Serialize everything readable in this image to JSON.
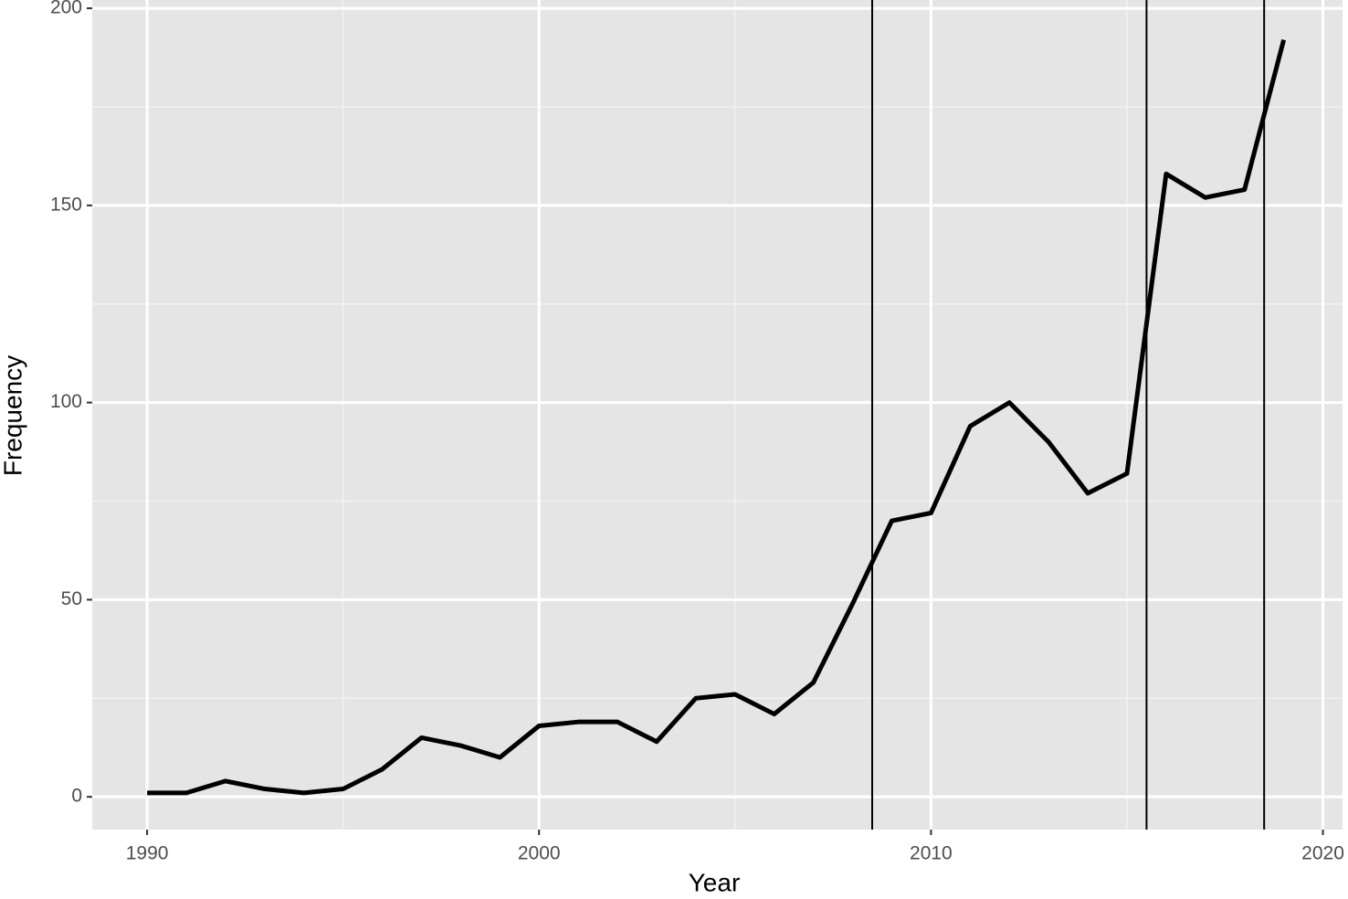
{
  "chart_data": {
    "type": "line",
    "x_label": "Year",
    "y_label": "Frequency",
    "x": [
      1990,
      1991,
      1992,
      1993,
      1994,
      1995,
      1996,
      1997,
      1998,
      1999,
      2000,
      2001,
      2002,
      2003,
      2004,
      2005,
      2006,
      2007,
      2008,
      2009,
      2010,
      2011,
      2012,
      2013,
      2014,
      2015,
      2016,
      2017,
      2018,
      2019
    ],
    "values": [
      1,
      1,
      4,
      2,
      1,
      2,
      7,
      15,
      13,
      10,
      18,
      19,
      19,
      14,
      25,
      26,
      21,
      29,
      49,
      70,
      72,
      94,
      100,
      90,
      77,
      82,
      158,
      152,
      154,
      192
    ],
    "color": "#000000",
    "vlines": [
      2008.5,
      2015.5,
      2018.5
    ],
    "xlim": [
      1988.6,
      2020.5
    ],
    "xticks": [
      1990,
      2000,
      2010,
      2020
    ],
    "x_minor_ticks": [
      1995,
      2005,
      2015
    ],
    "ylim": [
      -8.3,
      202.1
    ],
    "yticks": [
      0,
      50,
      100,
      150,
      200
    ],
    "y_minor_ticks": [
      25,
      75,
      125,
      175
    ],
    "grid": true
  }
}
